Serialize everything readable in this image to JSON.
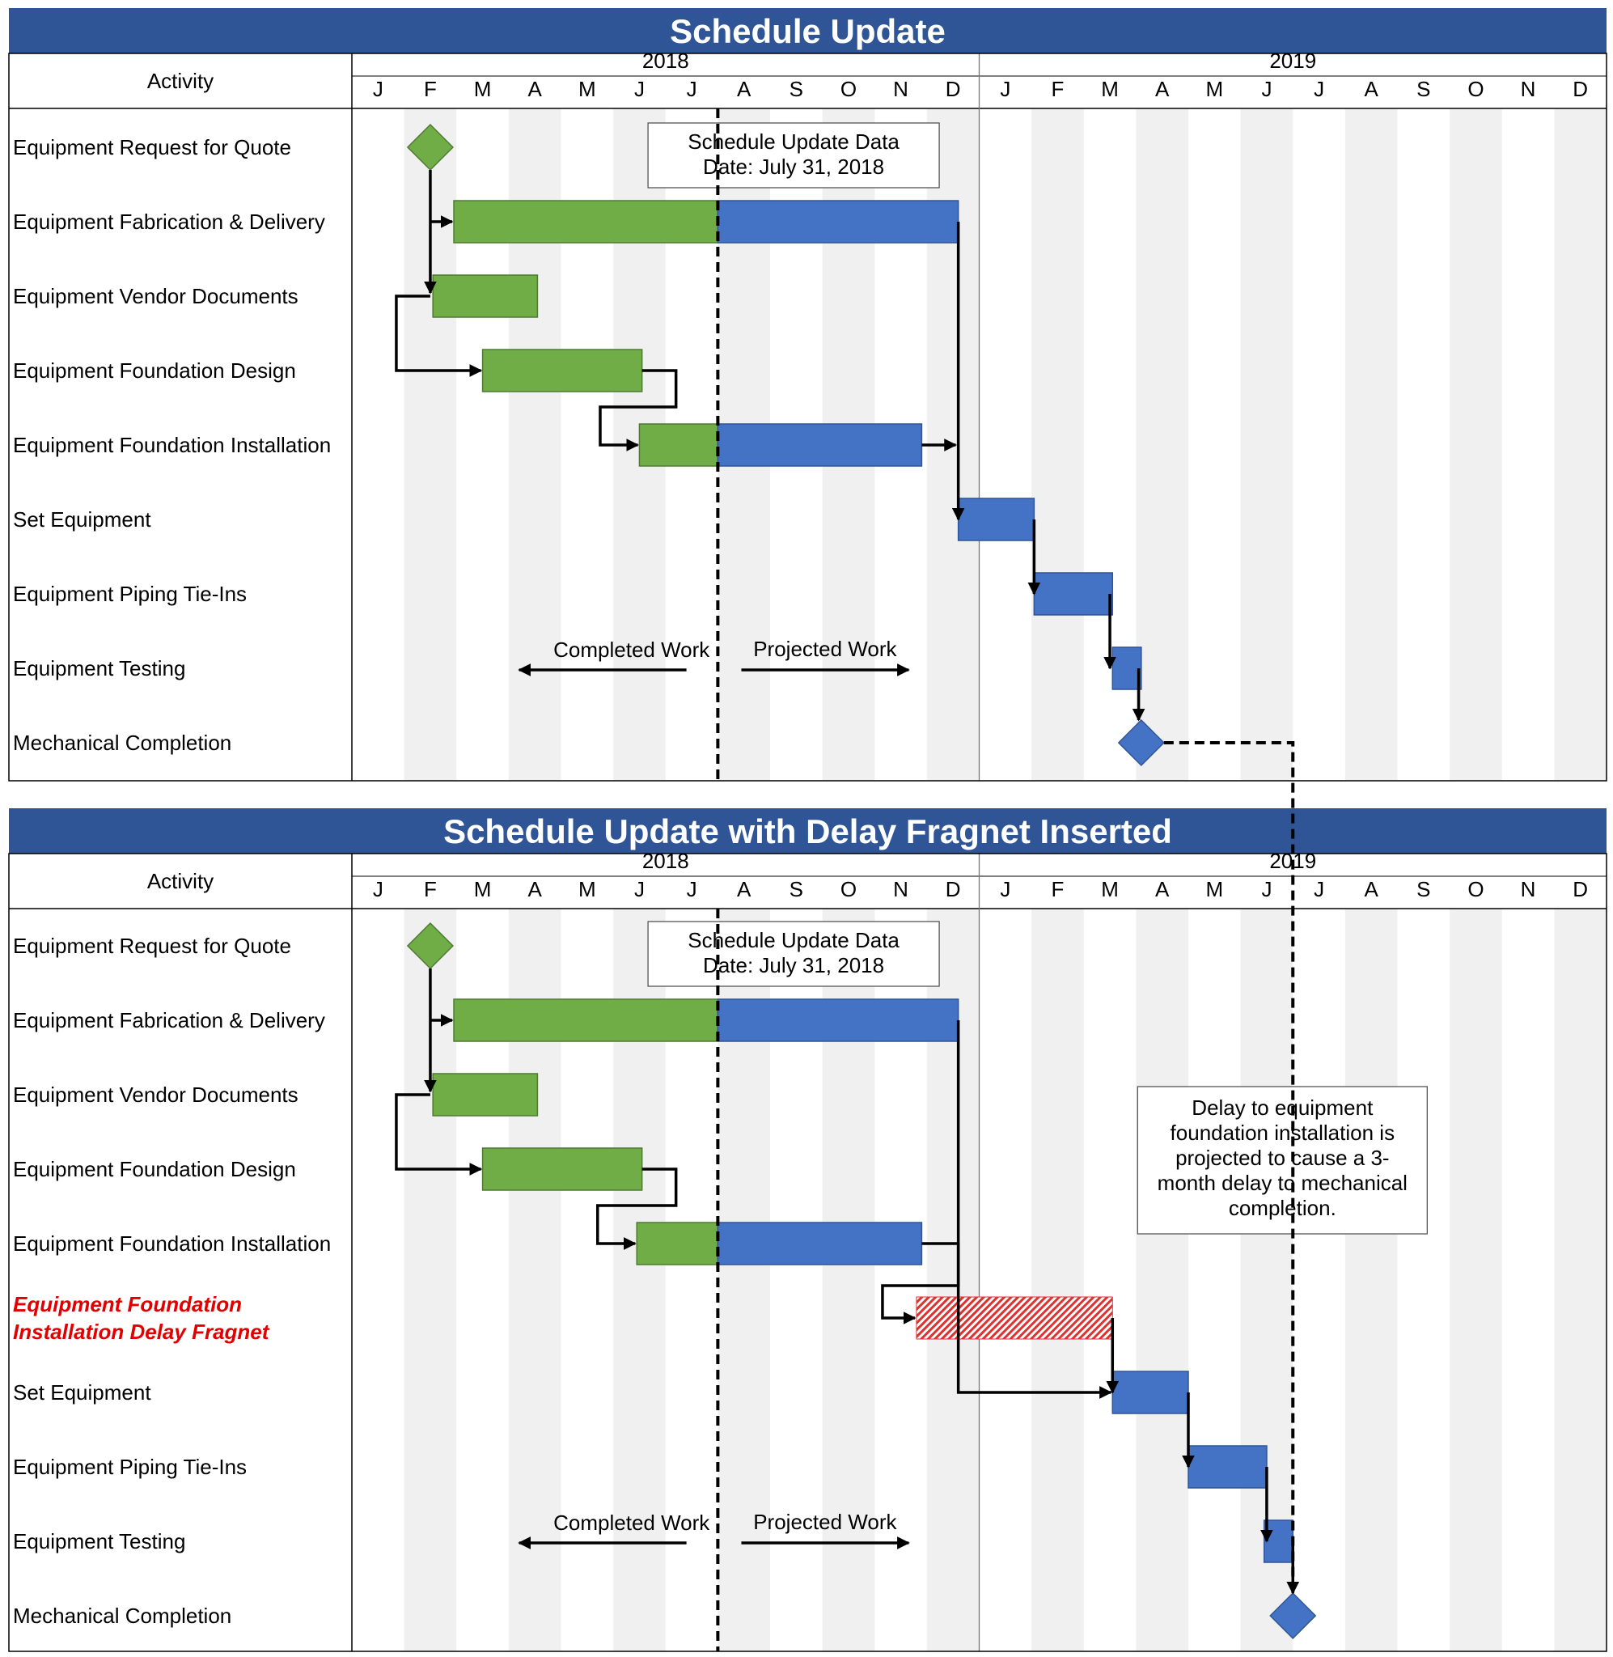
{
  "chart_data": [
    {
      "type": "gantt",
      "title": "Schedule Update",
      "activity_header": "Activity",
      "years": [
        "2018",
        "2019"
      ],
      "months": [
        "J",
        "F",
        "M",
        "A",
        "M",
        "J",
        "J",
        "A",
        "S",
        "O",
        "N",
        "D",
        "J",
        "F",
        "M",
        "A",
        "M",
        "J",
        "J",
        "A",
        "S",
        "O",
        "N",
        "D"
      ],
      "status_box": [
        "Schedule Update Data",
        "Date: July 31, 2018"
      ],
      "data_date": 7.0,
      "completed_label": "Completed Work",
      "projected_label": "Projected Work",
      "activities": [
        {
          "name": "Equipment Request for Quote",
          "kind": "milestone",
          "at": 1.5,
          "status": "completed"
        },
        {
          "name": "Equipment Fabrication & Delivery",
          "kind": "task",
          "start": 1.95,
          "end": 11.6,
          "completed_until": 7.0
        },
        {
          "name": "Equipment Vendor Documents",
          "kind": "task",
          "start": 1.55,
          "end": 3.55,
          "completed_until": 3.55
        },
        {
          "name": "Equipment Foundation Design",
          "kind": "task",
          "start": 2.5,
          "end": 5.55,
          "completed_until": 5.55
        },
        {
          "name": "Equipment Foundation Installation",
          "kind": "task",
          "start": 5.5,
          "end": 10.9,
          "completed_until": 7.0
        },
        {
          "name": "Set Equipment",
          "kind": "task",
          "start": 11.6,
          "end": 13.05,
          "completed_until": null
        },
        {
          "name": "Equipment Piping Tie-Ins",
          "kind": "task",
          "start": 13.05,
          "end": 14.55,
          "completed_until": null
        },
        {
          "name": "Equipment Testing",
          "kind": "task",
          "start": 14.55,
          "end": 15.1,
          "completed_until": null
        },
        {
          "name": "Mechanical Completion",
          "kind": "milestone",
          "at": 15.1,
          "status": "projected"
        }
      ]
    },
    {
      "type": "gantt",
      "title": "Schedule Update with Delay Fragnet Inserted",
      "activity_header": "Activity",
      "years": [
        "2018",
        "2019"
      ],
      "months": [
        "J",
        "F",
        "M",
        "A",
        "M",
        "J",
        "J",
        "A",
        "S",
        "O",
        "N",
        "D",
        "J",
        "F",
        "M",
        "A",
        "M",
        "J",
        "J",
        "A",
        "S",
        "O",
        "N",
        "D"
      ],
      "status_box": [
        "Schedule Update Data",
        "Date: July 31, 2018"
      ],
      "data_date": 7.0,
      "completed_label": "Completed Work",
      "projected_label": "Projected Work",
      "note": [
        "Delay to equipment",
        "foundation installation is",
        "projected to cause a 3-",
        "month delay to mechanical",
        "completion."
      ],
      "activities": [
        {
          "name": "Equipment Request for Quote",
          "kind": "milestone",
          "at": 1.5,
          "status": "completed"
        },
        {
          "name": "Equipment Fabrication & Delivery",
          "kind": "task",
          "start": 1.95,
          "end": 11.6,
          "completed_until": 7.0
        },
        {
          "name": "Equipment Vendor Documents",
          "kind": "task",
          "start": 1.55,
          "end": 3.55,
          "completed_until": 3.55
        },
        {
          "name": "Equipment Foundation Design",
          "kind": "task",
          "start": 2.5,
          "end": 5.55,
          "completed_until": 5.55
        },
        {
          "name": "Equipment Foundation Installation",
          "kind": "task",
          "start": 5.45,
          "end": 10.9,
          "completed_until": 7.0
        },
        {
          "name": "Equipment Foundation Installation Delay Fragnet",
          "name_lines": [
            "Equipment Foundation",
            "Installation Delay Fragnet"
          ],
          "kind": "delay",
          "start": 10.8,
          "end": 14.55
        },
        {
          "name": "Set Equipment",
          "kind": "task",
          "start": 14.55,
          "end": 16.0,
          "completed_until": null
        },
        {
          "name": "Equipment Piping Tie-Ins",
          "kind": "task",
          "start": 16.0,
          "end": 17.5,
          "completed_until": null
        },
        {
          "name": "Equipment Testing",
          "kind": "task",
          "start": 17.45,
          "end": 18.0,
          "completed_until": null
        },
        {
          "name": "Mechanical Completion",
          "kind": "milestone",
          "at": 18.0,
          "status": "projected"
        }
      ]
    }
  ],
  "colors": {
    "header_blue": "#2f5597",
    "completed_green": "#70ad47",
    "projected_blue": "#4472c4",
    "delay_red": "#e03030",
    "fragnet_text": "#e00000",
    "shade": "#f0f0f0"
  }
}
